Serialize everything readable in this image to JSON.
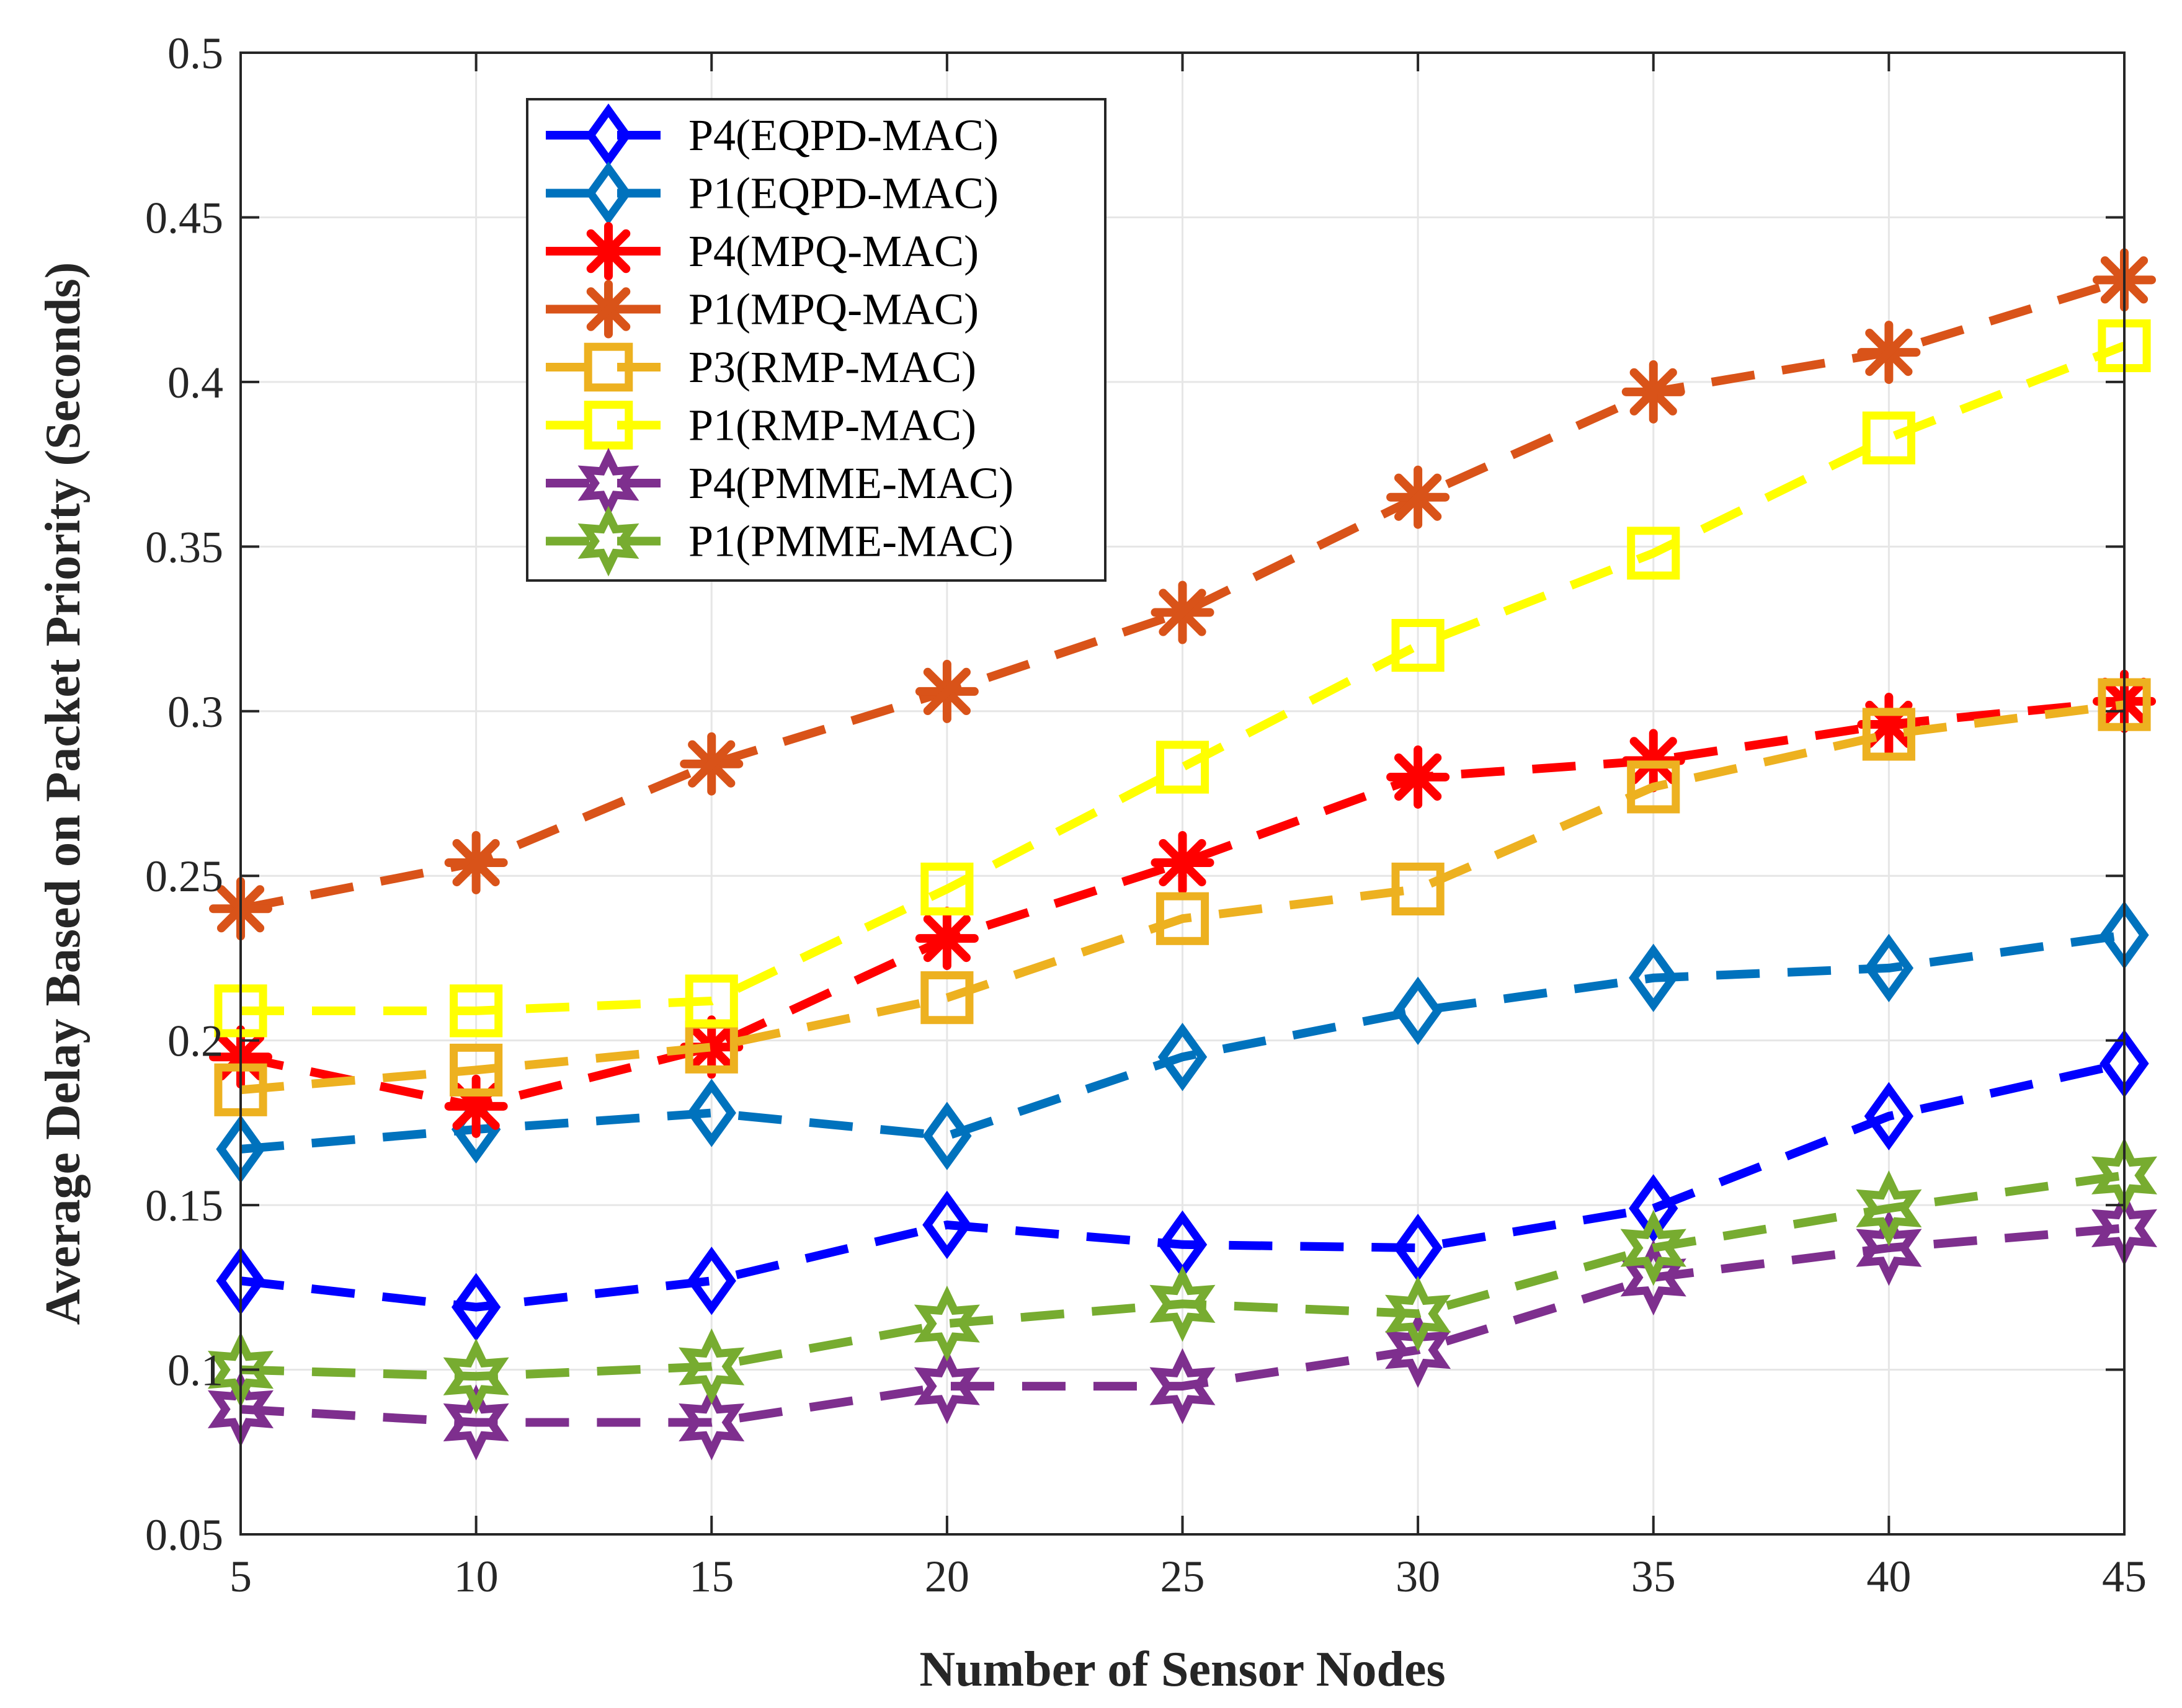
{
  "chart_data": {
    "type": "line",
    "title": "",
    "xlabel": "Number of Sensor Nodes",
    "ylabel": "Average Delay Based on Packet Priority (Seconds)",
    "xlim": [
      5,
      45
    ],
    "ylim": [
      0.05,
      0.5
    ],
    "grid": true,
    "legend_position": "top-left",
    "x": [
      5,
      10,
      15,
      20,
      25,
      30,
      35,
      40,
      45
    ],
    "x_ticks": [
      "5",
      "10",
      "15",
      "20",
      "25",
      "30",
      "35",
      "40",
      "45"
    ],
    "y_tick_values": [
      0.05,
      0.1,
      0.15,
      0.2,
      0.25,
      0.3,
      0.35,
      0.4,
      0.45,
      0.5
    ],
    "y_ticks": [
      "0.05",
      "0.1",
      "0.15",
      "0.2",
      "0.25",
      "0.3",
      "0.35",
      "0.4",
      "0.45",
      "0.5"
    ],
    "series": [
      {
        "name": "P4(EQPD-MAC)",
        "color": "#0000ff",
        "marker": "diamond",
        "values": [
          0.127,
          0.119,
          0.127,
          0.144,
          0.138,
          0.137,
          0.149,
          0.177,
          0.193
        ]
      },
      {
        "name": "P1(EQPD-MAC)",
        "color": "#0072bd",
        "marker": "diamond",
        "values": [
          0.167,
          0.173,
          0.178,
          0.171,
          0.195,
          0.209,
          0.219,
          0.222,
          0.232
        ]
      },
      {
        "name": "P4(MPQ-MAC)",
        "color": "#ff0000",
        "marker": "asterisk",
        "values": [
          0.195,
          0.18,
          0.198,
          0.231,
          0.254,
          0.28,
          0.285,
          0.296,
          0.303
        ]
      },
      {
        "name": "P1(MPQ-MAC)",
        "color": "#d95319",
        "marker": "asterisk",
        "values": [
          0.24,
          0.254,
          0.284,
          0.306,
          0.33,
          0.365,
          0.397,
          0.409,
          0.431
        ]
      },
      {
        "name": "P3(RMP-MAC)",
        "color": "#edb120",
        "marker": "square",
        "values": [
          0.185,
          0.191,
          0.198,
          0.213,
          0.237,
          0.246,
          0.277,
          0.293,
          0.302
        ]
      },
      {
        "name": "P1(RMP-MAC)",
        "color": "#ffff00",
        "marker": "square",
        "values": [
          0.209,
          0.209,
          0.212,
          0.246,
          0.283,
          0.32,
          0.348,
          0.383,
          0.411
        ]
      },
      {
        "name": "P4(PMME-MAC)",
        "color": "#7e2f8e",
        "marker": "hexagram",
        "values": [
          0.088,
          0.084,
          0.084,
          0.095,
          0.095,
          0.106,
          0.128,
          0.137,
          0.143
        ]
      },
      {
        "name": "P1(PMME-MAC)",
        "color": "#77ac30",
        "marker": "hexagram",
        "values": [
          0.1,
          0.098,
          0.101,
          0.114,
          0.12,
          0.117,
          0.137,
          0.149,
          0.159
        ]
      }
    ]
  }
}
